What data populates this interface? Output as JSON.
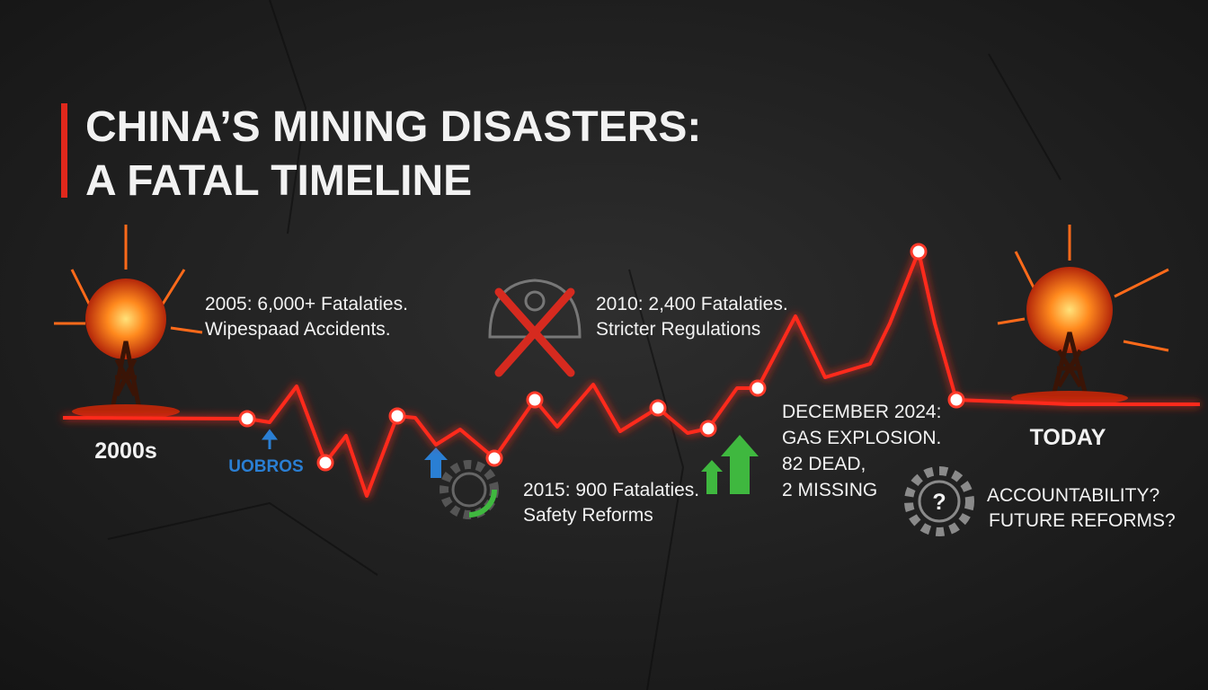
{
  "header": {
    "title_lines": [
      "CHINA’S MINING DISASTERS:",
      "A FATAL TIMELINE"
    ]
  },
  "timeline": {
    "start_label": "2000s",
    "end_label": "TODAY",
    "marker_label": "UOBROS"
  },
  "events": [
    {
      "lines": [
        "2005: 6,000+ Fatalaties.",
        "Wipespaad Accidents."
      ]
    },
    {
      "lines": [
        "2010: 2,400 Fatalaties.",
        "Stricter Regulations"
      ]
    },
    {
      "lines": [
        "2015: 900 Fatalaties.",
        "Safety Reforms"
      ]
    },
    {
      "lines": [
        "DECEMBER 2024:",
        "GAS EXPLOSION.",
        "82 DEAD,",
        "2 MISSING"
      ]
    },
    {
      "lines": [
        "ACCOUNTABILITY?",
        "FUTURE REFORMS?"
      ]
    }
  ],
  "icons": {
    "question_mark": "?"
  }
}
